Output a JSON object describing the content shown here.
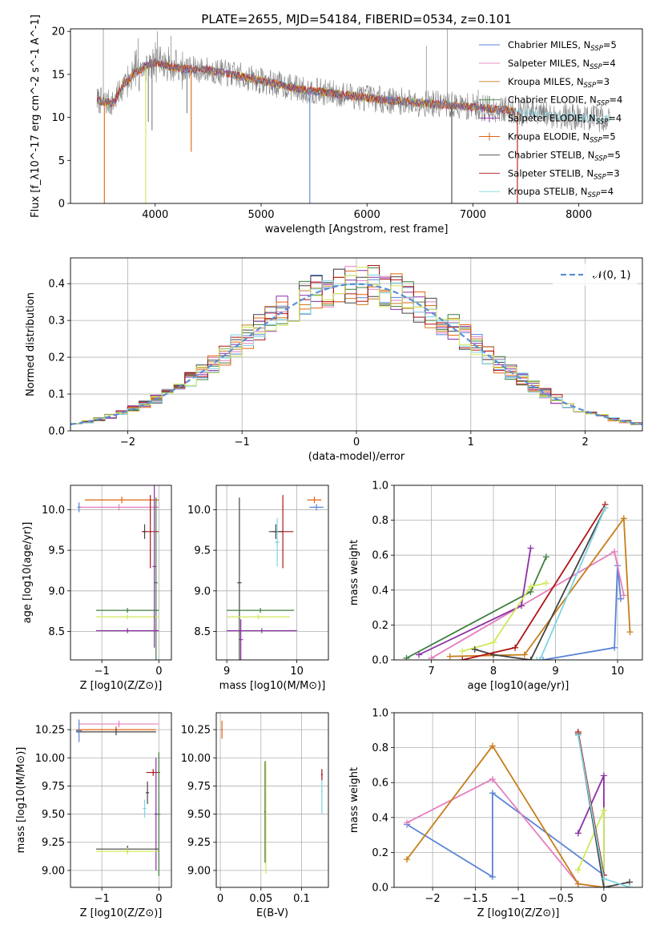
{
  "figure": {
    "title": "PLATE=2655, MJD=54184, FIBERID=0534, z=0.101"
  },
  "colors": {
    "Chabrier MILES": "#5b84d6",
    "Salpeter MILES": "#e57fbf",
    "Kroupa MILES": "#c77e1a",
    "Chabrier ELODIE": "#3f7f3f",
    "Salpeter ELODIE": "#8b2fa6",
    "Kroupa ELODIE": "#e0640f",
    "Chabrier STELIB": "#444444",
    "Salpeter STELIB": "#b01515",
    "Kroupa STELIB": "#7fd4e0",
    "lime": "#cfe85a",
    "data": "#7f7f7f"
  },
  "chart_data": [
    {
      "id": "spectrum",
      "type": "line",
      "xlabel": "wavelength [Angstrom, rest frame]",
      "ylabel": "Flux [f_λ10^-17 erg cm^-2 s^-1 A^-1]",
      "xlim": [
        3200,
        8600
      ],
      "ylim": [
        0,
        20.3
      ],
      "xticks": [
        4000,
        5000,
        6000,
        7000,
        8000
      ],
      "yticks": [
        0,
        5,
        10,
        15,
        20
      ],
      "grid": false,
      "legend": "top-right",
      "legend_entries": [
        {
          "main": "Chabrier MILES, N",
          "sub": "SSP",
          "tail": "=5",
          "marker": "none",
          "color_key": "Chabrier MILES"
        },
        {
          "main": "Salpeter MILES, N",
          "sub": "SSP",
          "tail": "=4",
          "marker": "none",
          "color_key": "Salpeter MILES"
        },
        {
          "main": "Kroupa MILES, N",
          "sub": "SSP",
          "tail": "=3",
          "marker": "none",
          "color_key": "Kroupa MILES"
        },
        {
          "main": "Chabrier ELODIE, N",
          "sub": "SSP",
          "tail": "=4",
          "marker": "plus",
          "color_key": "Chabrier ELODIE"
        },
        {
          "main": "Salpeter ELODIE, N",
          "sub": "SSP",
          "tail": "=4",
          "marker": "plus",
          "color_key": "Salpeter ELODIE"
        },
        {
          "main": "Kroupa ELODIE, N",
          "sub": "SSP",
          "tail": "=5",
          "marker": "plus",
          "color_key": "Kroupa ELODIE"
        },
        {
          "main": "Chabrier STELIB, N",
          "sub": "SSP",
          "tail": "=5",
          "marker": "none",
          "color_key": "Chabrier STELIB"
        },
        {
          "main": "Salpeter STELIB, N",
          "sub": "SSP",
          "tail": "=3",
          "marker": "none",
          "color_key": "Salpeter STELIB"
        },
        {
          "main": "Kroupa STELIB, N",
          "sub": "SSP",
          "tail": "=4",
          "marker": "none",
          "color_key": "Kroupa STELIB"
        }
      ],
      "continuum": {
        "x": [
          3450,
          3600,
          3700,
          3800,
          3900,
          4000,
          4100,
          4300,
          4500,
          4800,
          5100,
          5400,
          5800,
          6200,
          6600,
          7000,
          7300,
          7500,
          7700,
          8000,
          8300
        ],
        "y": [
          12.0,
          11.6,
          13.8,
          15.0,
          16.0,
          16.4,
          16.0,
          15.6,
          15.5,
          14.8,
          14.0,
          13.2,
          12.6,
          12.0,
          11.6,
          11.2,
          10.9,
          10.5,
          10.3,
          10.0,
          9.8
        ]
      },
      "dips": [
        {
          "x": 3520,
          "y": 0.0,
          "color_key": "Kroupa ELODIE"
        },
        {
          "x": 3910,
          "y": 0.0,
          "color_key": "lime"
        },
        {
          "x": 3935,
          "y": 9.5,
          "color_key": "data"
        },
        {
          "x": 3970,
          "y": 8.5,
          "color_key": "data"
        },
        {
          "x": 4300,
          "y": 10.5,
          "color_key": "data"
        },
        {
          "x": 4340,
          "y": 6.0,
          "color_key": "Kroupa ELODIE"
        },
        {
          "x": 5460,
          "y": 0.0,
          "color_key": "Chabrier MILES"
        },
        {
          "x": 6800,
          "y": 0.0,
          "color_key": "Chabrier STELIB"
        },
        {
          "x": 7420,
          "y": 0.0,
          "color_key": "Salpeter STELIB"
        }
      ],
      "spikes": [
        {
          "x": 3510,
          "y": 20.3
        },
        {
          "x": 3840,
          "y": 19.2
        },
        {
          "x": 4020,
          "y": 20.0
        },
        {
          "x": 4150,
          "y": 19.5
        },
        {
          "x": 6560,
          "y": 18.3
        },
        {
          "x": 6760,
          "y": 20.3
        },
        {
          "x": 7050,
          "y": 13.2
        }
      ]
    },
    {
      "id": "residuals",
      "type": "bar",
      "xlabel": "(data-model)/error",
      "ylabel": "Normed distribution",
      "xlim": [
        -2.5,
        2.5
      ],
      "ylim": [
        0,
        0.47
      ],
      "xticks": [
        -2,
        -1,
        0,
        1,
        2
      ],
      "yticks": [
        0.0,
        0.1,
        0.2,
        0.3,
        0.4
      ],
      "grid": true,
      "legend": "top-right",
      "legend_label": "𝒩(0, 1)",
      "bin_width": 0.1
    },
    {
      "id": "age-vs-z",
      "type": "scatter",
      "xlabel": "Z [log10(Z/Z⊙)]",
      "ylabel": "age [log10(age/yr)]",
      "xlim": [
        -1.55,
        0.22
      ],
      "ylim": [
        8.15,
        10.3
      ],
      "xticks": [
        -1,
        0
      ],
      "yticks": [
        8.5,
        9.0,
        9.5,
        10.0
      ],
      "grid": true,
      "points": [
        {
          "x": -0.65,
          "y": 10.12,
          "xerr": 0.65,
          "yerr": 0.04,
          "color_key": "Kroupa ELODIE"
        },
        {
          "x": -0.7,
          "y": 10.03,
          "xerr": 0.7,
          "yerr": 0.04,
          "color_key": "Salpeter MILES"
        },
        {
          "x": -1.4,
          "y": 10.03,
          "xerr": 0.03,
          "yerr": 0.06,
          "color_key": "Chabrier MILES"
        },
        {
          "x": -0.15,
          "y": 9.73,
          "xerr": 0.15,
          "yerr": 0.45,
          "color_key": "Salpeter STELIB"
        },
        {
          "x": -0.25,
          "y": 9.73,
          "xerr": 0.03,
          "yerr": 0.09,
          "color_key": "Chabrier STELIB"
        },
        {
          "x": -0.05,
          "y": 9.1,
          "xerr": 0.03,
          "yerr": 1.05,
          "color_key": "Chabrier ELODIE"
        },
        {
          "x": -0.55,
          "y": 8.76,
          "xerr": 0.55,
          "yerr": 0.03,
          "color_key": "Chabrier ELODIE"
        },
        {
          "x": -0.55,
          "y": 8.68,
          "xerr": 0.55,
          "yerr": 0.03,
          "color_key": "lime"
        },
        {
          "x": -0.55,
          "y": 8.51,
          "xerr": 0.55,
          "yerr": 0.03,
          "color_key": "Salpeter ELODIE"
        },
        {
          "x": -0.08,
          "y": 9.3,
          "xerr": 0.03,
          "yerr": 1.0,
          "color_key": "Salpeter ELODIE"
        }
      ]
    },
    {
      "id": "age-vs-mass",
      "type": "scatter",
      "xlabel": "mass [log10(M/M⊙)]",
      "ylabel": "",
      "xlim": [
        8.85,
        10.45
      ],
      "ylim": [
        8.15,
        10.3
      ],
      "xticks": [
        9,
        10
      ],
      "yticks": [
        8.5,
        9.0,
        9.5,
        10.0
      ],
      "grid": true,
      "points": [
        {
          "x": 10.25,
          "y": 10.12,
          "xerr": 0.1,
          "yerr": 0.04,
          "color_key": "Kroupa ELODIE"
        },
        {
          "x": 10.28,
          "y": 10.03,
          "xerr": 0.1,
          "yerr": 0.04,
          "color_key": "Chabrier MILES"
        },
        {
          "x": 9.8,
          "y": 9.73,
          "xerr": 0.15,
          "yerr": 0.45,
          "color_key": "Salpeter STELIB"
        },
        {
          "x": 9.7,
          "y": 9.73,
          "xerr": 0.1,
          "yerr": 0.09,
          "color_key": "Chabrier STELIB"
        },
        {
          "x": 9.72,
          "y": 9.6,
          "xerr": 0.03,
          "yerr": 0.3,
          "color_key": "Kroupa STELIB"
        },
        {
          "x": 9.18,
          "y": 9.1,
          "xerr": 0.03,
          "yerr": 1.05,
          "color_key": "Chabrier STELIB"
        },
        {
          "x": 9.48,
          "y": 8.76,
          "xerr": 0.48,
          "yerr": 0.03,
          "color_key": "Chabrier ELODIE"
        },
        {
          "x": 9.45,
          "y": 8.68,
          "xerr": 0.45,
          "yerr": 0.03,
          "color_key": "lime"
        },
        {
          "x": 9.2,
          "y": 8.4,
          "xerr": 0.03,
          "yerr": 0.25,
          "color_key": "Salpeter ELODIE"
        },
        {
          "x": 9.5,
          "y": 8.51,
          "xerr": 0.5,
          "yerr": 0.03,
          "color_key": "Salpeter ELODIE"
        }
      ]
    },
    {
      "id": "weight-vs-age",
      "type": "line",
      "xlabel": "age [log10(age/yr)]",
      "ylabel": "mass weight",
      "xlim": [
        6.4,
        10.4
      ],
      "ylim": [
        0,
        1.0
      ],
      "xticks": [
        7,
        8,
        9,
        10
      ],
      "yticks": [
        0.0,
        0.2,
        0.4,
        0.6,
        0.8,
        1.0
      ],
      "grid": true,
      "series": [
        {
          "color_key": "Chabrier MILES",
          "x": [
            8.8,
            9.95,
            10.0,
            10.05
          ],
          "y": [
            0.0,
            0.07,
            0.54,
            0.35
          ]
        },
        {
          "color_key": "Salpeter MILES",
          "x": [
            7.0,
            9.95,
            10.1
          ],
          "y": [
            0.01,
            0.62,
            0.37
          ]
        },
        {
          "color_key": "Kroupa MILES",
          "x": [
            7.3,
            8.5,
            10.1,
            10.2
          ],
          "y": [
            0.02,
            0.03,
            0.81,
            0.16
          ]
        },
        {
          "color_key": "Chabrier ELODIE",
          "x": [
            6.6,
            8.6,
            8.85
          ],
          "y": [
            0.01,
            0.39,
            0.59
          ]
        },
        {
          "color_key": "Salpeter ELODIE",
          "x": [
            6.8,
            8.45,
            8.6
          ],
          "y": [
            0.03,
            0.31,
            0.64
          ]
        },
        {
          "color_key": "lime",
          "x": [
            7.5,
            8.0,
            8.6,
            8.85
          ],
          "y": [
            0.05,
            0.1,
            0.42,
            0.44
          ]
        },
        {
          "color_key": "Chabrier STELIB",
          "x": [
            7.7,
            8.0,
            8.6,
            9.8
          ],
          "y": [
            0.06,
            0.03,
            0.0,
            0.87
          ]
        },
        {
          "color_key": "Salpeter STELIB",
          "x": [
            7.5,
            8.35,
            9.8
          ],
          "y": [
            0.0,
            0.07,
            0.89
          ]
        },
        {
          "color_key": "Kroupa STELIB",
          "x": [
            8.7,
            8.75,
            9.8
          ],
          "y": [
            0.0,
            0.0,
            0.87
          ]
        }
      ]
    },
    {
      "id": "mass-vs-z",
      "type": "scatter",
      "xlabel": "Z [log10(Z/Z⊙)]",
      "ylabel": "mass [log10(M/M⊙)]",
      "xlim": [
        -1.55,
        0.22
      ],
      "ylim": [
        8.85,
        10.4
      ],
      "xticks": [
        -1,
        0
      ],
      "yticks": [
        9.0,
        9.25,
        9.5,
        9.75,
        10.0,
        10.25
      ],
      "grid": true,
      "points": [
        {
          "x": -0.7,
          "y": 10.3,
          "xerr": 0.7,
          "yerr": 0.03,
          "color_key": "Salpeter MILES"
        },
        {
          "x": -0.75,
          "y": 10.25,
          "xerr": 0.7,
          "yerr": 0.03,
          "color_key": "Kroupa ELODIE"
        },
        {
          "x": -0.75,
          "y": 10.23,
          "xerr": 0.7,
          "yerr": 0.03,
          "color_key": "Chabrier STELIB"
        },
        {
          "x": -1.4,
          "y": 10.24,
          "xerr": 0.05,
          "yerr": 0.1,
          "color_key": "Chabrier MILES"
        },
        {
          "x": -0.1,
          "y": 9.87,
          "xerr": 0.12,
          "yerr": 0.03,
          "color_key": "Salpeter STELIB"
        },
        {
          "x": -0.2,
          "y": 9.69,
          "xerr": 0.03,
          "yerr": 0.1,
          "color_key": "Chabrier STELIB"
        },
        {
          "x": -0.25,
          "y": 9.55,
          "xerr": 0.03,
          "yerr": 0.08,
          "color_key": "Kroupa STELIB"
        },
        {
          "x": -0.05,
          "y": 9.5,
          "xerr": 0.03,
          "yerr": 0.5,
          "color_key": "Salpeter ELODIE"
        },
        {
          "x": -0.55,
          "y": 9.19,
          "xerr": 0.55,
          "yerr": 0.03,
          "color_key": "Chabrier STELIB"
        },
        {
          "x": -0.55,
          "y": 9.17,
          "xerr": 0.55,
          "yerr": 0.03,
          "color_key": "lime"
        },
        {
          "x": 0.0,
          "y": 9.5,
          "xerr": 0.03,
          "yerr": 0.55,
          "color_key": "Chabrier ELODIE"
        }
      ]
    },
    {
      "id": "mass-vs-ebv",
      "type": "scatter",
      "xlabel": "E(B-V)",
      "ylabel": "",
      "xlim": [
        -0.005,
        0.133
      ],
      "ylim": [
        8.85,
        10.4
      ],
      "xticks": [
        0.0,
        0.05,
        0.1
      ],
      "yticks": [
        9.0,
        9.25,
        9.5,
        9.75,
        10.0,
        10.25
      ],
      "grid": true,
      "points": [
        {
          "x": 0.002,
          "y": 10.25,
          "xerr": 0.001,
          "yerr": 0.08,
          "color_key": "Kroupa ELODIE"
        },
        {
          "x": 0.056,
          "y": 9.47,
          "xerr": 0.001,
          "yerr": 0.5,
          "color_key": "lime"
        },
        {
          "x": 0.055,
          "y": 9.52,
          "xerr": 0.001,
          "yerr": 0.45,
          "color_key": "Chabrier ELODIE"
        },
        {
          "x": 0.125,
          "y": 9.7,
          "xerr": 0.001,
          "yerr": 0.2,
          "color_key": "Kroupa STELIB"
        },
        {
          "x": 0.125,
          "y": 9.85,
          "xerr": 0.001,
          "yerr": 0.05,
          "color_key": "Salpeter STELIB"
        }
      ]
    },
    {
      "id": "weight-vs-z",
      "type": "line",
      "xlabel": "Z [log10(Z/Z⊙)]",
      "ylabel": "mass weight",
      "xlim": [
        -2.45,
        0.45
      ],
      "ylim": [
        0,
        1.0
      ],
      "xticks": [
        -2.0,
        -1.5,
        -1.0,
        -0.5,
        0.0
      ],
      "yticks": [
        0.0,
        0.2,
        0.4,
        0.6,
        0.8,
        1.0
      ],
      "grid": true,
      "series": [
        {
          "color_key": "Chabrier MILES",
          "x": [
            -2.3,
            -1.3,
            -1.3,
            0.0
          ],
          "y": [
            0.36,
            0.06,
            0.54,
            0.07
          ]
        },
        {
          "color_key": "Salpeter MILES",
          "x": [
            -2.3,
            -1.3,
            -0.3,
            0.0
          ],
          "y": [
            0.37,
            0.62,
            0.02,
            0.0
          ]
        },
        {
          "color_key": "Kroupa MILES",
          "x": [
            -2.3,
            -1.3,
            -0.3,
            0.0
          ],
          "y": [
            0.16,
            0.81,
            0.02,
            0.0
          ]
        },
        {
          "color_key": "Salpeter ELODIE",
          "x": [
            -0.3,
            0.0,
            0.0
          ],
          "y": [
            0.31,
            0.64,
            0.0
          ]
        },
        {
          "color_key": "lime",
          "x": [
            -0.3,
            0.0,
            0.0
          ],
          "y": [
            0.1,
            0.44,
            0.0
          ]
        },
        {
          "color_key": "Chabrier STELIB",
          "x": [
            -0.3,
            0.0,
            0.3
          ],
          "y": [
            0.88,
            0.0,
            0.03
          ]
        },
        {
          "color_key": "Salpeter STELIB",
          "x": [
            -0.3,
            0.0
          ],
          "y": [
            0.89,
            0.07
          ]
        },
        {
          "color_key": "Kroupa STELIB",
          "x": [
            -0.3,
            0.0,
            0.3
          ],
          "y": [
            0.87,
            0.05,
            0.0
          ]
        }
      ]
    }
  ]
}
